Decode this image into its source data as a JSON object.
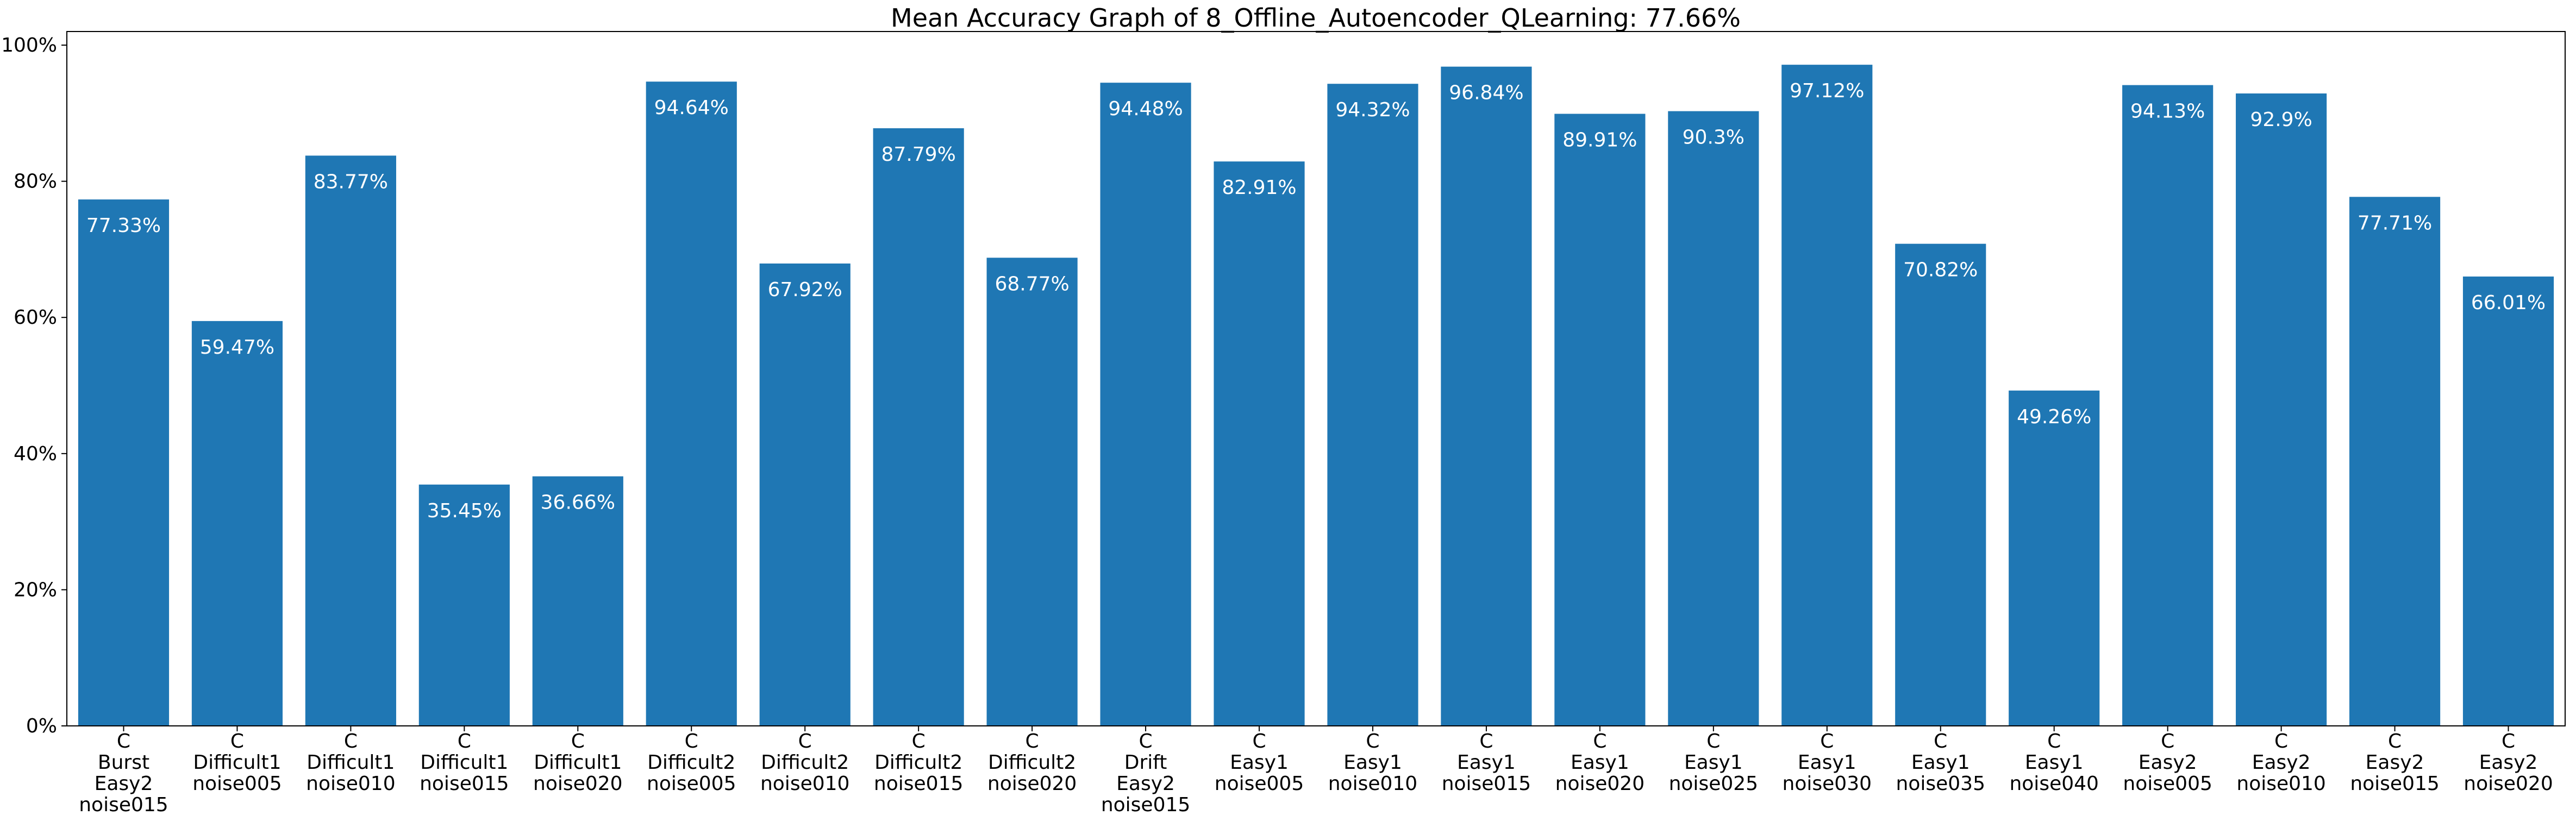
{
  "chart_data": {
    "type": "bar",
    "title": "Mean Accuracy Graph of 8_Offline_Autoencoder_QLearning: 77.66%",
    "xlabel": "",
    "ylabel": "",
    "ylim": [
      0,
      102
    ],
    "yticks": [
      0,
      20,
      40,
      60,
      80,
      100
    ],
    "ytick_labels": [
      "0%",
      "20%",
      "40%",
      "60%",
      "80%",
      "100%"
    ],
    "grid": false,
    "bar_color": "#1f77b4",
    "categories": [
      [
        "C",
        "Burst",
        "Easy2",
        "noise015"
      ],
      [
        "C",
        "Difficult1",
        "noise005"
      ],
      [
        "C",
        "Difficult1",
        "noise010"
      ],
      [
        "C",
        "Difficult1",
        "noise015"
      ],
      [
        "C",
        "Difficult1",
        "noise020"
      ],
      [
        "C",
        "Difficult2",
        "noise005"
      ],
      [
        "C",
        "Difficult2",
        "noise010"
      ],
      [
        "C",
        "Difficult2",
        "noise015"
      ],
      [
        "C",
        "Difficult2",
        "noise020"
      ],
      [
        "C",
        "Drift",
        "Easy2",
        "noise015"
      ],
      [
        "C",
        "Easy1",
        "noise005"
      ],
      [
        "C",
        "Easy1",
        "noise010"
      ],
      [
        "C",
        "Easy1",
        "noise015"
      ],
      [
        "C",
        "Easy1",
        "noise020"
      ],
      [
        "C",
        "Easy1",
        "noise025"
      ],
      [
        "C",
        "Easy1",
        "noise030"
      ],
      [
        "C",
        "Easy1",
        "noise035"
      ],
      [
        "C",
        "Easy1",
        "noise040"
      ],
      [
        "C",
        "Easy2",
        "noise005"
      ],
      [
        "C",
        "Easy2",
        "noise010"
      ],
      [
        "C",
        "Easy2",
        "noise015"
      ],
      [
        "C",
        "Easy2",
        "noise020"
      ]
    ],
    "values": [
      77.33,
      59.47,
      83.77,
      35.45,
      36.66,
      94.64,
      67.92,
      87.79,
      68.77,
      94.48,
      82.91,
      94.32,
      96.84,
      89.91,
      90.3,
      97.12,
      70.82,
      49.26,
      94.13,
      92.9,
      77.71,
      66.01
    ],
    "value_labels": [
      "77.33%",
      "59.47%",
      "83.77%",
      "35.45%",
      "36.66%",
      "94.64%",
      "67.92%",
      "87.79%",
      "68.77%",
      "94.48%",
      "82.91%",
      "94.32%",
      "96.84%",
      "89.91%",
      "90.3%",
      "97.12%",
      "70.82%",
      "49.26%",
      "94.13%",
      "92.9%",
      "77.71%",
      "66.01%"
    ]
  }
}
